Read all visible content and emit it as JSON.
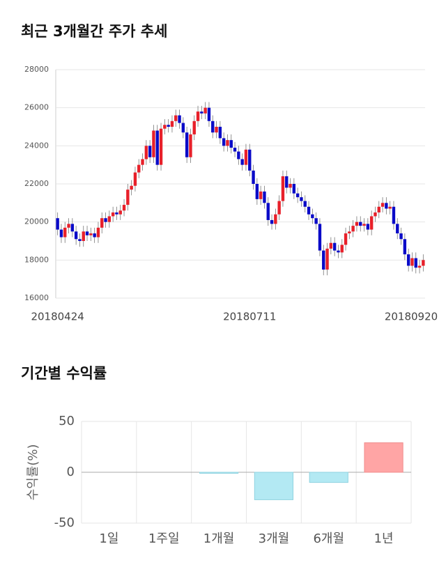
{
  "chart_data": [
    {
      "type": "candlestick",
      "title": "최근 3개월간 주가 추세",
      "categories": [
        "20180424",
        null,
        null,
        null,
        null,
        null,
        null,
        null,
        null,
        null,
        null,
        null,
        null,
        null,
        null,
        null,
        null,
        null,
        null,
        null,
        null,
        null,
        null,
        null,
        null,
        null,
        null,
        null,
        null,
        null,
        null,
        null,
        null,
        null,
        null,
        null,
        null,
        null,
        null,
        null,
        null,
        null,
        null,
        null,
        null,
        null,
        null,
        null,
        null,
        null,
        null,
        null,
        "20180711",
        null,
        null,
        null,
        null,
        null,
        null,
        null,
        null,
        null,
        null,
        null,
        null,
        null,
        null,
        null,
        null,
        null,
        null,
        null,
        null,
        null,
        null,
        null,
        null,
        null,
        null,
        null,
        null,
        null,
        null,
        null,
        null,
        null,
        null,
        null,
        null,
        null,
        null,
        null,
        null,
        null,
        null,
        null,
        null,
        null,
        null,
        "20180920"
      ],
      "open": [
        20200,
        19600,
        19200,
        19700,
        19900,
        19500,
        19100,
        19000,
        19500,
        19300,
        19400,
        19200,
        19700,
        20200,
        20000,
        20300,
        20500,
        20400,
        20600,
        20900,
        21700,
        21900,
        22600,
        23000,
        23300,
        24000,
        23400,
        24800,
        23000,
        24900,
        25100,
        25000,
        25300,
        25600,
        25200,
        24700,
        23400,
        24600,
        25300,
        25800,
        25700,
        26000,
        25300,
        24700,
        25000,
        24400,
        24000,
        24300,
        23900,
        23700,
        23300,
        23000,
        23800,
        22700,
        22000,
        21200,
        21600,
        21000,
        20100,
        19900,
        20400,
        21100,
        22400,
        21800,
        22000,
        21500,
        21300,
        21100,
        20800,
        20400,
        20200,
        19900,
        18500,
        17500,
        18600,
        18900,
        18500,
        18400,
        18800,
        19400,
        19500,
        19800,
        20000,
        19800,
        19900,
        19600,
        20300,
        20500,
        20800,
        21000,
        20700,
        20800,
        19900,
        19400,
        19100,
        18300,
        17700,
        18100,
        17600,
        17700
      ],
      "high": [
        20500,
        19900,
        20000,
        20200,
        20200,
        19800,
        19400,
        19800,
        19800,
        19700,
        19700,
        20000,
        20500,
        20500,
        20600,
        20800,
        20800,
        20900,
        21200,
        22000,
        22200,
        22900,
        23300,
        23600,
        24300,
        24300,
        25100,
        25100,
        25200,
        25400,
        25400,
        25600,
        25900,
        25900,
        25500,
        25000,
        24900,
        25600,
        26100,
        26100,
        26300,
        26300,
        25600,
        25300,
        25300,
        24700,
        24600,
        24600,
        24200,
        24000,
        23600,
        24100,
        24100,
        23000,
        22300,
        21900,
        21900,
        21300,
        20400,
        20700,
        21400,
        22700,
        22700,
        22300,
        22300,
        21800,
        21600,
        21400,
        21100,
        20700,
        20500,
        20200,
        18800,
        18900,
        19200,
        19200,
        18800,
        19100,
        19700,
        19800,
        20100,
        20300,
        20300,
        20200,
        20200,
        20600,
        20800,
        21100,
        21300,
        21300,
        21100,
        21100,
        20200,
        19700,
        19400,
        18600,
        18400,
        18400,
        18000,
        18300
      ],
      "low": [
        19300,
        18900,
        18900,
        19400,
        19200,
        18800,
        18700,
        18700,
        19000,
        19000,
        18900,
        18900,
        19400,
        19700,
        19700,
        20000,
        20100,
        20100,
        20300,
        20600,
        21400,
        21600,
        22300,
        22700,
        23000,
        23100,
        23100,
        22700,
        22700,
        24600,
        24700,
        24700,
        25000,
        24900,
        24400,
        23100,
        23100,
        24300,
        25000,
        25400,
        25400,
        25000,
        24400,
        24400,
        24100,
        23700,
        23700,
        23600,
        23400,
        23000,
        22700,
        22700,
        22400,
        21700,
        20900,
        20900,
        20700,
        19800,
        19600,
        19600,
        20100,
        20800,
        21500,
        21500,
        21200,
        21000,
        20800,
        20500,
        20100,
        19900,
        19600,
        18200,
        17200,
        17200,
        18300,
        18200,
        18100,
        18100,
        18500,
        19100,
        19200,
        19500,
        19500,
        19500,
        19300,
        19300,
        20000,
        20200,
        20500,
        20400,
        20400,
        19600,
        19100,
        18800,
        18000,
        17400,
        17400,
        17300,
        17300,
        17400
      ],
      "close": [
        19600,
        19200,
        19700,
        19900,
        19500,
        19100,
        19000,
        19500,
        19300,
        19400,
        19200,
        19700,
        20200,
        20000,
        20300,
        20500,
        20400,
        20600,
        20900,
        21700,
        21900,
        22600,
        23000,
        23300,
        24000,
        23400,
        24800,
        23000,
        24900,
        25100,
        25000,
        25300,
        25600,
        25200,
        24700,
        23400,
        24600,
        25300,
        25800,
        25700,
        26000,
        25300,
        24700,
        25000,
        24400,
        24000,
        24300,
        23900,
        23700,
        23300,
        23000,
        23800,
        22700,
        22000,
        21200,
        21600,
        21000,
        20100,
        19900,
        20400,
        21100,
        22400,
        21800,
        22000,
        21500,
        21300,
        21100,
        20800,
        20400,
        20200,
        19900,
        18500,
        17500,
        18600,
        18900,
        18500,
        18400,
        18800,
        19400,
        19500,
        19800,
        20000,
        19800,
        19900,
        19600,
        20300,
        20500,
        20800,
        21000,
        20700,
        20800,
        19900,
        19400,
        19100,
        18300,
        17700,
        18100,
        17600,
        17700,
        18000
      ],
      "up_color": "#e8202a",
      "down_color": "#0a0ac8",
      "ylim": [
        16000,
        28000
      ],
      "yticks": [
        16000,
        18000,
        20000,
        22000,
        24000,
        26000,
        28000
      ],
      "grid": true
    },
    {
      "type": "bar",
      "title": "기간별 수익률",
      "y_label": "수익률(%)",
      "categories": [
        "1일",
        "1주일",
        "1개월",
        "3개월",
        "6개월",
        "1년"
      ],
      "values": [
        0,
        0,
        -1,
        -27,
        -10,
        29
      ],
      "positive_color": "#ffa5a5",
      "negative_color": "#b3e9f3",
      "ylim": [
        -50,
        50
      ],
      "yticks": [
        -50,
        0,
        50
      ],
      "grid": true
    }
  ]
}
